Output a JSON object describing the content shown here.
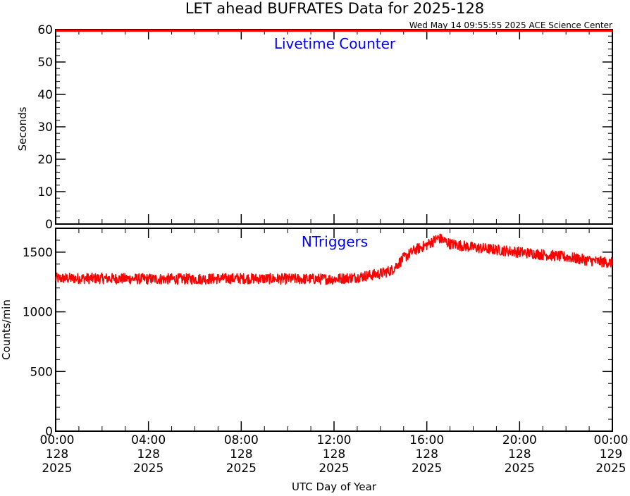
{
  "title": "LET ahead BUFRATES Data for 2025-128",
  "timestamp": "Wed May 14 09:55:55 2025 ACE Science Center",
  "xlabel": "UTC Day of Year",
  "colors": {
    "trace": "#ff0000",
    "panel_label": "#0000ff",
    "axis": "#000000"
  },
  "x_ticks": [
    {
      "lines": [
        "00:00",
        "128",
        "2025"
      ],
      "hour": 0
    },
    {
      "lines": [
        "04:00",
        "128",
        "2025"
      ],
      "hour": 4
    },
    {
      "lines": [
        "08:00",
        "128",
        "2025"
      ],
      "hour": 8
    },
    {
      "lines": [
        "12:00",
        "128",
        "2025"
      ],
      "hour": 12
    },
    {
      "lines": [
        "16:00",
        "128",
        "2025"
      ],
      "hour": 16
    },
    {
      "lines": [
        "20:00",
        "128",
        "2025"
      ],
      "hour": 20
    },
    {
      "lines": [
        "00:00",
        "129",
        "2025"
      ],
      "hour": 24
    }
  ],
  "chart_data": [
    {
      "type": "line",
      "panel": "top",
      "label": "Livetime Counter",
      "ylabel": "Seconds",
      "ylim": [
        0,
        60
      ],
      "xlim": [
        0,
        24
      ],
      "y_ticks": [
        0,
        10,
        20,
        30,
        40,
        50,
        60
      ],
      "x_unit": "hours UTC, day 128",
      "points": [
        [
          0,
          60
        ],
        [
          24,
          60
        ]
      ]
    },
    {
      "type": "line",
      "panel": "bottom",
      "label": "NTriggers",
      "ylabel": "Counts/min",
      "ylim": [
        0,
        1700
      ],
      "xlim": [
        0,
        24
      ],
      "y_ticks": [
        0,
        500,
        1000,
        1500
      ],
      "x_unit": "hours UTC, day 128",
      "trend": [
        [
          0,
          1280
        ],
        [
          2,
          1280
        ],
        [
          4,
          1275
        ],
        [
          6,
          1275
        ],
        [
          8,
          1280
        ],
        [
          10,
          1275
        ],
        [
          12,
          1275
        ],
        [
          13,
          1290
        ],
        [
          14,
          1320
        ],
        [
          14.5,
          1350
        ],
        [
          15,
          1450
        ],
        [
          15.5,
          1520
        ],
        [
          16,
          1560
        ],
        [
          16.5,
          1620
        ],
        [
          17,
          1570
        ],
        [
          18,
          1540
        ],
        [
          19,
          1520
        ],
        [
          20,
          1500
        ],
        [
          21,
          1480
        ],
        [
          22,
          1460
        ],
        [
          23,
          1430
        ],
        [
          24,
          1410
        ]
      ],
      "noise_amplitude": 45
    }
  ]
}
